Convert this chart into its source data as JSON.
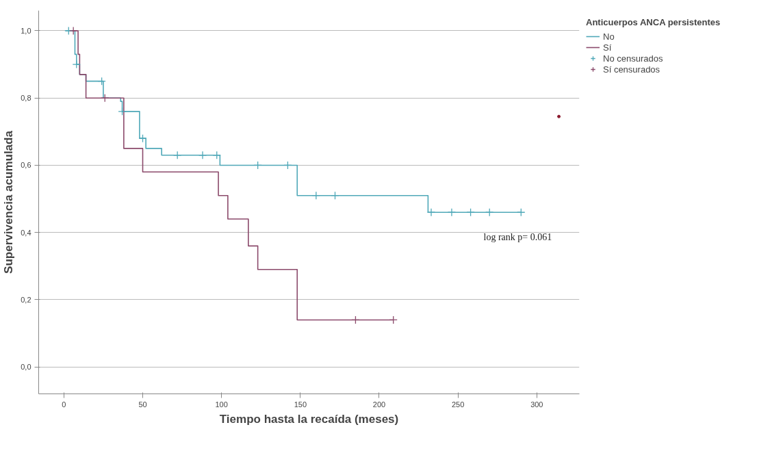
{
  "chart_data": {
    "type": "step",
    "xlabel": "Tiempo hasta la recaída (meses)",
    "ylabel": "Supervivencia acumulada",
    "legend_title": "Anticuerpos ANCA persistentes",
    "legend": "top right",
    "grid": "y",
    "xlim": [
      -16,
      327
    ],
    "xticks": [
      0,
      50,
      100,
      150,
      200,
      250,
      300
    ],
    "ylim": [
      -0.08,
      1.06
    ],
    "yticks": [
      {
        "value": 0,
        "label": "0,0"
      },
      {
        "value": 0.2,
        "label": "0,2"
      },
      {
        "value": 0.4,
        "label": "0,4"
      },
      {
        "value": 0.6,
        "label": "0,6"
      },
      {
        "value": 0.8,
        "label": "0,8"
      },
      {
        "value": 1,
        "label": "1,0"
      }
    ],
    "annotations": [
      "log rank p=  0.061"
    ],
    "series": [
      {
        "name": "No",
        "color": "#4fa8b8",
        "x": [
          1,
          7,
          8,
          10,
          14,
          25,
          36,
          37,
          48,
          52,
          62,
          99,
          148,
          231,
          290
        ],
        "values": [
          1.0,
          0.93,
          0.9,
          0.87,
          0.85,
          0.8,
          0.79,
          0.76,
          0.68,
          0.65,
          0.63,
          0.6,
          0.51,
          0.46,
          0.46
        ]
      },
      {
        "name": "Sí",
        "color": "#8b4a6b",
        "x": [
          5,
          9,
          10,
          14,
          38,
          50,
          98,
          104,
          117,
          123,
          148,
          209
        ],
        "values": [
          1.0,
          0.93,
          0.87,
          0.8,
          0.65,
          0.58,
          0.51,
          0.44,
          0.36,
          0.29,
          0.14,
          0.14
        ]
      },
      {
        "name": "No censurados",
        "type": "scatter",
        "marker": "cross",
        "color": "#4fa8b8",
        "x": [
          3,
          8,
          24,
          37,
          50,
          72,
          88,
          97,
          123,
          142,
          160,
          172,
          233,
          246,
          258,
          270,
          290
        ],
        "values": [
          1.0,
          0.9,
          0.85,
          0.76,
          0.68,
          0.63,
          0.63,
          0.63,
          0.6,
          0.6,
          0.51,
          0.51,
          0.46,
          0.46,
          0.46,
          0.46,
          0.46
        ]
      },
      {
        "name": "Sí censurados",
        "type": "scatter",
        "marker": "cross",
        "color": "#8b4a6b",
        "x": [
          6,
          26,
          185,
          209
        ],
        "values": [
          1.0,
          0.8,
          0.14,
          0.14
        ]
      },
      {
        "type": "scatter",
        "marker": "circle",
        "color": "#8b1a2e",
        "x": [
          314
        ],
        "values": [
          0.745
        ]
      }
    ]
  }
}
